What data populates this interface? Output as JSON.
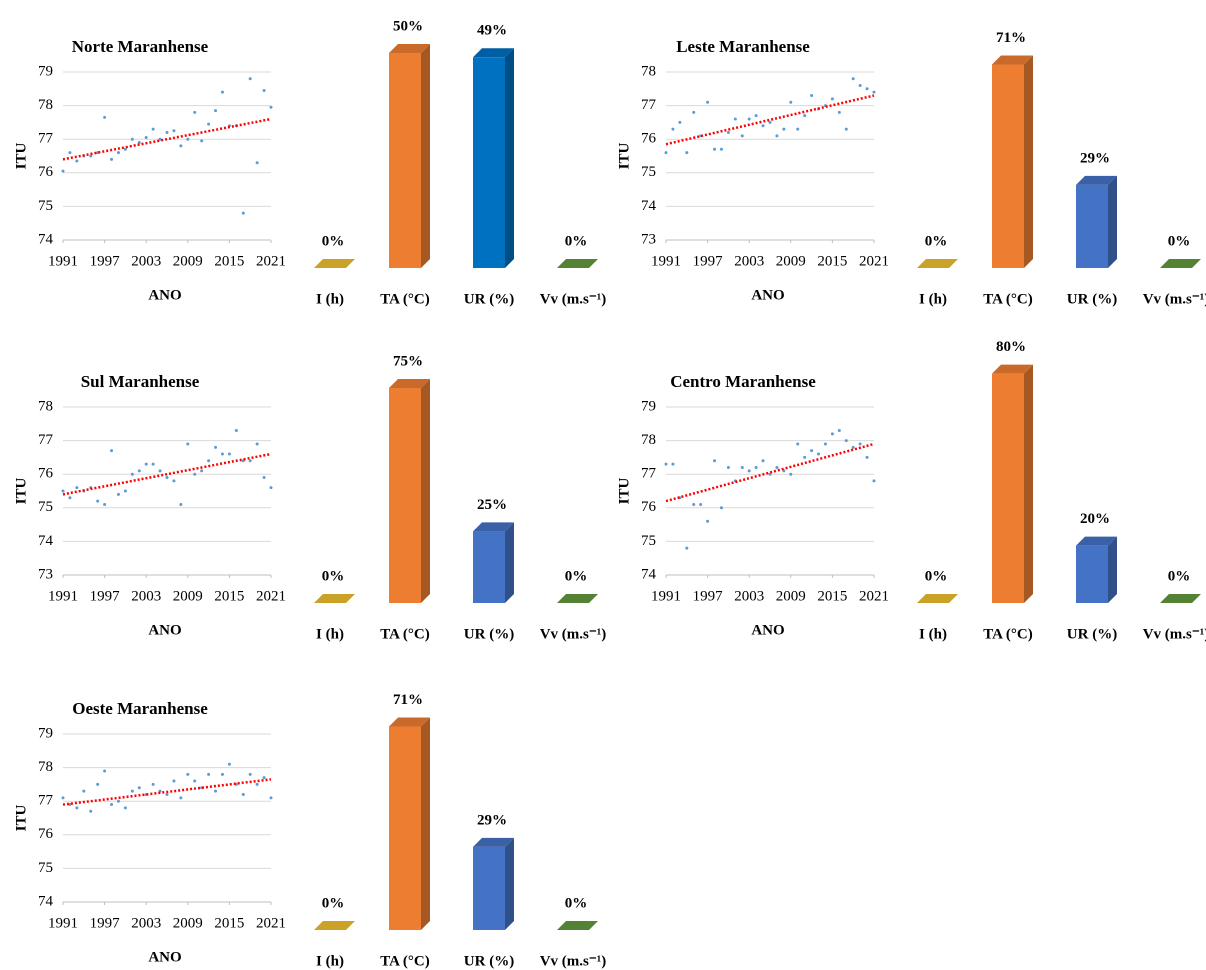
{
  "chart_data": [
    {
      "type": "scatter",
      "title": "Norte Maranhense",
      "xlabel": "ANO",
      "ylabel": "ITU",
      "color": "#5b9bd5",
      "x": [
        1991,
        1992,
        1993,
        1994,
        1995,
        1996,
        1997,
        1998,
        1999,
        2000,
        2001,
        2002,
        2003,
        2004,
        2005,
        2006,
        2007,
        2008,
        2009,
        2010,
        2011,
        2012,
        2013,
        2014,
        2015,
        2016,
        2017,
        2018,
        2019,
        2020,
        2021
      ],
      "values": [
        76.05,
        76.6,
        76.35,
        76.5,
        76.5,
        76.6,
        77.65,
        76.4,
        76.6,
        76.7,
        77.0,
        76.9,
        77.05,
        77.3,
        77.0,
        77.2,
        77.25,
        76.8,
        77.0,
        77.8,
        76.95,
        77.45,
        77.85,
        78.4,
        77.4,
        77.4,
        74.8,
        78.8,
        76.3,
        78.45,
        77.95
      ],
      "trendline": {
        "color": "#ff0000",
        "values": [
          76.4,
          77.6
        ]
      },
      "xlim": [
        1991,
        2021
      ],
      "xticks": [
        1991,
        1997,
        2003,
        2009,
        2015,
        2021
      ],
      "ylim": [
        74,
        79
      ],
      "yticks": [
        74,
        75,
        76,
        77,
        78,
        79
      ],
      "grid": true
    },
    {
      "type": "bar",
      "categories": [
        "I (h)",
        "TA (°C)",
        "UR (%)",
        "Vv (m.s⁻¹)"
      ],
      "values": [
        0,
        50,
        49,
        0
      ],
      "value_labels": [
        "0%",
        "50%",
        "49%",
        "0%"
      ],
      "colors": [
        "#c9a227",
        "#ed7d31",
        "#0070c0",
        "#548235"
      ],
      "ylim": [
        0,
        60
      ]
    },
    {
      "type": "scatter",
      "title": "Leste Maranhense",
      "xlabel": "ANO",
      "ylabel": "ITU",
      "color": "#5b9bd5",
      "x": [
        1991,
        1992,
        1993,
        1994,
        1995,
        1996,
        1997,
        1998,
        1999,
        2000,
        2001,
        2002,
        2003,
        2004,
        2005,
        2006,
        2007,
        2008,
        2009,
        2010,
        2011,
        2012,
        2013,
        2014,
        2015,
        2016,
        2017,
        2018,
        2019,
        2020,
        2021
      ],
      "values": [
        75.6,
        76.3,
        76.5,
        75.6,
        76.8,
        76.1,
        77.1,
        75.7,
        75.7,
        76.2,
        76.6,
        76.1,
        76.6,
        76.7,
        76.4,
        76.5,
        76.1,
        76.3,
        77.1,
        76.3,
        76.7,
        77.3,
        76.9,
        77.0,
        77.2,
        76.8,
        76.3,
        77.8,
        77.6,
        77.5,
        77.4
      ],
      "trendline": {
        "color": "#ff0000",
        "values": [
          75.85,
          77.3
        ]
      },
      "xlim": [
        1991,
        2021
      ],
      "xticks": [
        1991,
        1997,
        2003,
        2009,
        2015,
        2021
      ],
      "ylim": [
        73,
        78
      ],
      "yticks": [
        73,
        74,
        75,
        76,
        77,
        78
      ],
      "grid": true
    },
    {
      "type": "bar",
      "categories": [
        "I (h)",
        "TA (°C)",
        "UR (%)",
        "Vv (m.s⁻¹)"
      ],
      "values": [
        0,
        71,
        29,
        0
      ],
      "value_labels": [
        "0%",
        "71%",
        "29%",
        "0%"
      ],
      "colors": [
        "#c9a227",
        "#ed7d31",
        "#4472c4",
        "#548235"
      ],
      "ylim": [
        0,
        90
      ]
    },
    {
      "type": "scatter",
      "title": "Sul Maranhense",
      "xlabel": "ANO",
      "ylabel": "ITU",
      "color": "#5b9bd5",
      "x": [
        1991,
        1992,
        1993,
        1994,
        1995,
        1996,
        1997,
        1998,
        1999,
        2000,
        2001,
        2002,
        2003,
        2004,
        2005,
        2006,
        2007,
        2008,
        2009,
        2010,
        2011,
        2012,
        2013,
        2014,
        2015,
        2016,
        2017,
        2018,
        2019,
        2020,
        2021
      ],
      "values": [
        75.5,
        75.3,
        75.6,
        75.5,
        75.6,
        75.2,
        75.1,
        76.7,
        75.4,
        75.5,
        76.0,
        76.1,
        76.3,
        76.3,
        76.1,
        75.9,
        75.8,
        75.1,
        76.9,
        76.0,
        76.1,
        76.4,
        76.8,
        76.6,
        76.6,
        77.3,
        76.4,
        76.4,
        76.9,
        75.9,
        75.6
      ],
      "trendline": {
        "color": "#ff0000",
        "values": [
          75.4,
          76.6
        ]
      },
      "xlim": [
        1991,
        2021
      ],
      "xticks": [
        1991,
        1997,
        2003,
        2009,
        2015,
        2021
      ],
      "ylim": [
        73,
        78
      ],
      "yticks": [
        73,
        74,
        75,
        76,
        77,
        78
      ],
      "grid": true
    },
    {
      "type": "bar",
      "categories": [
        "I (h)",
        "TA (°C)",
        "UR (%)",
        "Vv (m.s⁻¹)"
      ],
      "values": [
        0,
        75,
        25,
        0
      ],
      "value_labels": [
        "0%",
        "75%",
        "25%",
        "0%"
      ],
      "colors": [
        "#c9a227",
        "#ed7d31",
        "#4472c4",
        "#548235"
      ],
      "ylim": [
        0,
        90
      ]
    },
    {
      "type": "scatter",
      "title": "Centro Maranhense",
      "xlabel": "ANO",
      "ylabel": "ITU",
      "color": "#5b9bd5",
      "x": [
        1991,
        1992,
        1993,
        1994,
        1995,
        1996,
        1997,
        1998,
        1999,
        2000,
        2001,
        2002,
        2003,
        2004,
        2005,
        2006,
        2007,
        2008,
        2009,
        2010,
        2011,
        2012,
        2013,
        2014,
        2015,
        2016,
        2017,
        2018,
        2019,
        2020,
        2021
      ],
      "values": [
        77.3,
        77.3,
        76.3,
        74.8,
        76.1,
        76.1,
        75.6,
        77.4,
        76.0,
        77.2,
        76.8,
        77.2,
        77.1,
        77.2,
        77.4,
        77.0,
        77.2,
        77.1,
        77.0,
        77.9,
        77.5,
        77.7,
        77.6,
        77.9,
        78.2,
        78.3,
        78.0,
        77.8,
        77.9,
        77.5,
        76.8
      ],
      "trendline": {
        "color": "#ff0000",
        "values": [
          76.2,
          77.9
        ]
      },
      "xlim": [
        1991,
        2021
      ],
      "xticks": [
        1991,
        1997,
        2003,
        2009,
        2015,
        2021
      ],
      "ylim": [
        74,
        79
      ],
      "yticks": [
        74,
        75,
        76,
        77,
        78,
        79
      ],
      "grid": true
    },
    {
      "type": "bar",
      "categories": [
        "I (h)",
        "TA (°C)",
        "UR (%)",
        "Vv (m.s⁻¹)"
      ],
      "values": [
        0,
        80,
        20,
        0
      ],
      "value_labels": [
        "0%",
        "80%",
        "20%",
        "0%"
      ],
      "colors": [
        "#c9a227",
        "#ed7d31",
        "#4472c4",
        "#548235"
      ],
      "ylim": [
        0,
        90
      ]
    },
    {
      "type": "scatter",
      "title": "Oeste Maranhense",
      "xlabel": "ANO",
      "ylabel": "ITU",
      "color": "#5b9bd5",
      "x": [
        1991,
        1992,
        1993,
        1994,
        1995,
        1996,
        1997,
        1998,
        1999,
        2000,
        2001,
        2002,
        2003,
        2004,
        2005,
        2006,
        2007,
        2008,
        2009,
        2010,
        2011,
        2012,
        2013,
        2014,
        2015,
        2016,
        2017,
        2018,
        2019,
        2020,
        2021
      ],
      "values": [
        77.1,
        76.9,
        76.8,
        77.3,
        76.7,
        77.5,
        77.9,
        76.9,
        77.0,
        76.8,
        77.3,
        77.4,
        77.2,
        77.5,
        77.3,
        77.2,
        77.6,
        77.1,
        77.8,
        77.6,
        77.4,
        77.8,
        77.3,
        77.8,
        78.1,
        77.5,
        77.2,
        77.8,
        77.5,
        77.7,
        77.1
      ],
      "trendline": {
        "color": "#ff0000",
        "values": [
          76.9,
          77.65
        ]
      },
      "xlim": [
        1991,
        2021
      ],
      "xticks": [
        1991,
        1997,
        2003,
        2009,
        2015,
        2021
      ],
      "ylim": [
        74,
        79
      ],
      "yticks": [
        74,
        75,
        76,
        77,
        78,
        79
      ],
      "grid": true
    },
    {
      "type": "bar",
      "categories": [
        "I (h)",
        "TA (°C)",
        "UR (%)",
        "Vv (m.s⁻¹)"
      ],
      "values": [
        0,
        71,
        29,
        0
      ],
      "value_labels": [
        "0%",
        "71%",
        "29%",
        "0%"
      ],
      "colors": [
        "#c9a227",
        "#ed7d31",
        "#4472c4",
        "#548235"
      ],
      "ylim": [
        0,
        90
      ]
    }
  ]
}
